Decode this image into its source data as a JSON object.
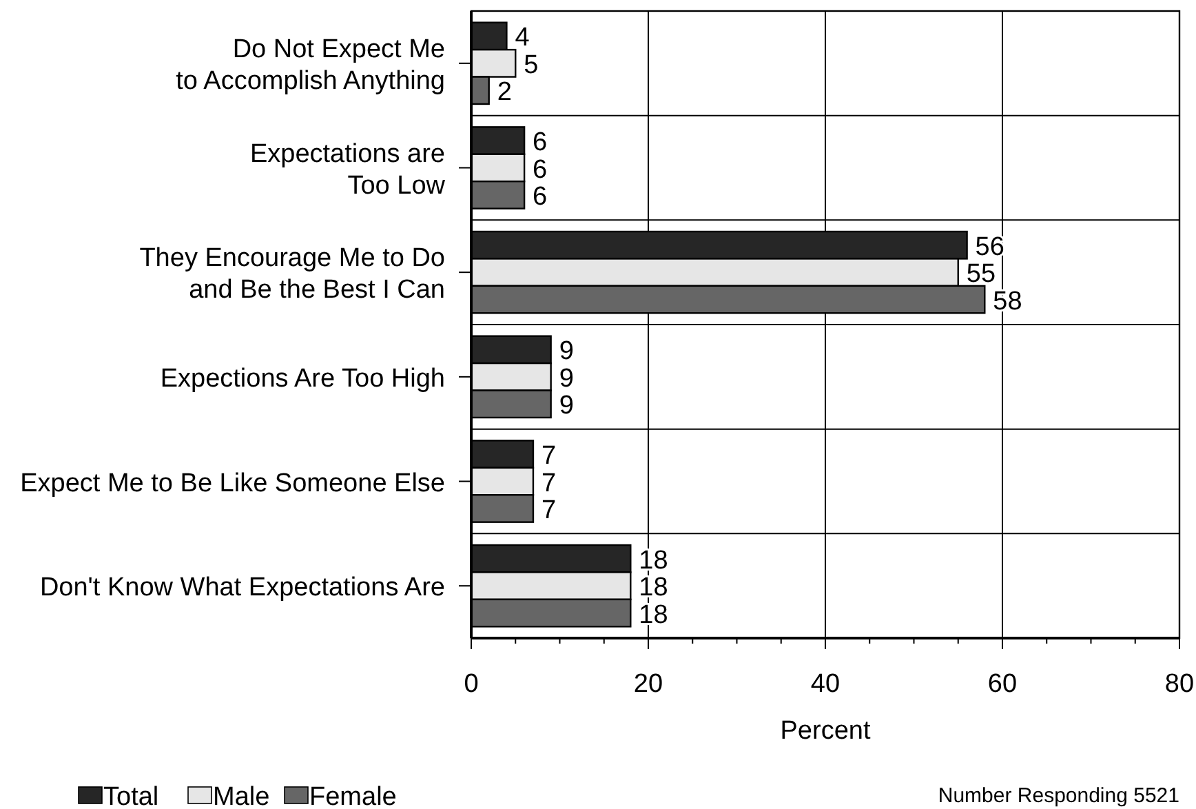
{
  "chart_data": {
    "type": "bar",
    "orientation": "horizontal",
    "categories": [
      "Do Not Expect Me\nto Accomplish Anything",
      "Expectations are\nToo Low",
      "They Encourage Me to Do\nand Be the Best I Can",
      "Expections Are Too High",
      "Expect Me to Be Like Someone Else",
      "Don't Know What Expectations Are"
    ],
    "series": [
      {
        "name": "Total",
        "color": "#262626",
        "values": [
          4,
          6,
          56,
          9,
          7,
          18
        ]
      },
      {
        "name": "Male",
        "color": "#e6e6e6",
        "values": [
          5,
          6,
          55,
          9,
          7,
          18
        ]
      },
      {
        "name": "Female",
        "color": "#666666",
        "values": [
          2,
          6,
          58,
          9,
          7,
          18
        ]
      }
    ],
    "xlabel": "Percent",
    "xlim": [
      0,
      80
    ],
    "xticks": [
      0,
      {
        "value": 5,
        "label": null
      },
      {
        "value": 10,
        "label": null
      },
      {
        "value": 15,
        "label": null
      },
      20,
      {
        "value": 25,
        "label": null
      },
      {
        "value": 30,
        "label": null
      },
      {
        "value": 35,
        "label": null
      },
      40,
      {
        "value": 45,
        "label": null
      },
      {
        "value": 50,
        "label": null
      },
      {
        "value": 55,
        "label": null
      },
      60,
      {
        "value": 65,
        "label": null
      },
      {
        "value": 70,
        "label": null
      },
      {
        "value": 75,
        "label": null
      },
      80
    ],
    "grid": true,
    "legend": "bottom left",
    "data_labels": true,
    "annotations": [
      "Number Responding 5521"
    ]
  }
}
